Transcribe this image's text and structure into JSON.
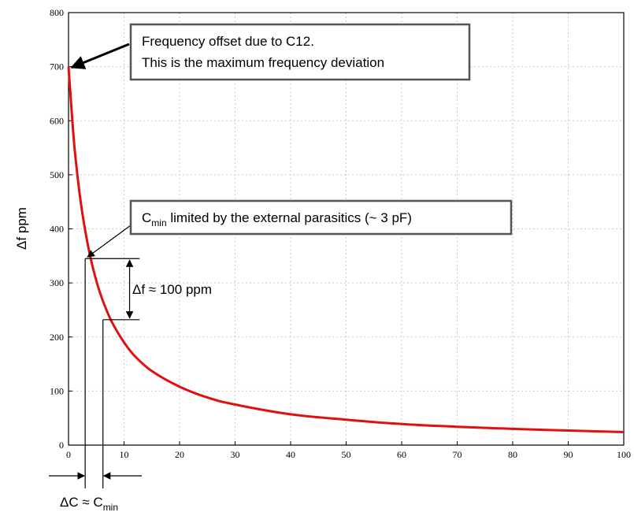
{
  "chart_data": {
    "type": "line",
    "title": "",
    "xlabel": "",
    "ylabel": "Δf ppm",
    "xlim": [
      0,
      100
    ],
    "ylim": [
      0,
      800
    ],
    "x_ticks": [
      0,
      10,
      20,
      30,
      40,
      50,
      60,
      70,
      80,
      90,
      100
    ],
    "y_ticks": [
      0,
      100,
      200,
      300,
      400,
      500,
      600,
      700,
      800
    ],
    "grid": true,
    "series": [
      {
        "color": "#e01010",
        "x": [
          0,
          1,
          2,
          3,
          4,
          5,
          6,
          7,
          8,
          10,
          12,
          15,
          20,
          25,
          30,
          40,
          50,
          60,
          70,
          80,
          90,
          100
        ],
        "y": [
          700,
          560,
          465,
          397,
          345,
          304,
          272,
          246,
          224,
          190,
          164,
          137,
          108,
          88,
          75,
          57,
          47,
          39,
          34,
          30,
          27,
          24
        ]
      }
    ],
    "annotations": {
      "box1_line1": "Frequency offset due to C12.",
      "box1_line2": "This is the maximum frequency deviation",
      "box2_c": "C",
      "box2_sub": "min",
      "box2_rest": " limited by the external parasitics (~ 3 pF)",
      "delta_f_label": "Δf ≈ 100 ppm",
      "delta_c_prefix": "ΔC ≈ C",
      "delta_c_sub": "min"
    },
    "markers": {
      "cmin_x": 3,
      "cmin_y": 345,
      "c2_x": 6.2,
      "c2_y": 232
    }
  }
}
